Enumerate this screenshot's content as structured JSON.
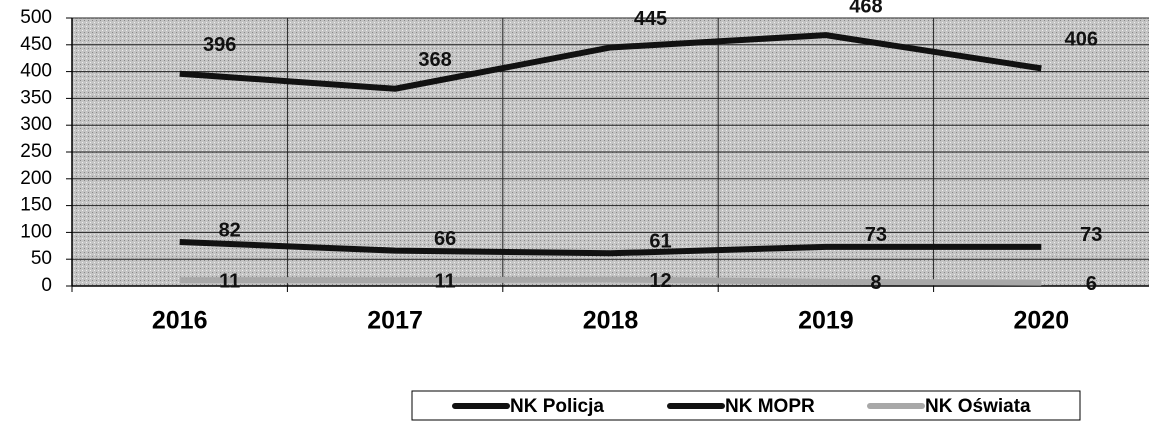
{
  "chart_data": {
    "type": "line",
    "categories": [
      "2016",
      "2017",
      "2018",
      "2019",
      "2020"
    ],
    "series": [
      {
        "name": "NK Policja",
        "color": "#111111",
        "values": [
          396,
          368,
          445,
          468,
          406
        ]
      },
      {
        "name": "NK MOPR",
        "color": "#111111",
        "values": [
          82,
          66,
          61,
          73,
          73
        ]
      },
      {
        "name": "NK Oświata",
        "color": "#a8a8a8",
        "values": [
          11,
          11,
          12,
          8,
          6
        ]
      }
    ],
    "ylim": [
      0,
      500
    ],
    "yticks": [
      0,
      50,
      100,
      150,
      200,
      250,
      300,
      350,
      400,
      450,
      500
    ],
    "grid": true,
    "legend": "bottom",
    "background": "#c4c4c4"
  }
}
